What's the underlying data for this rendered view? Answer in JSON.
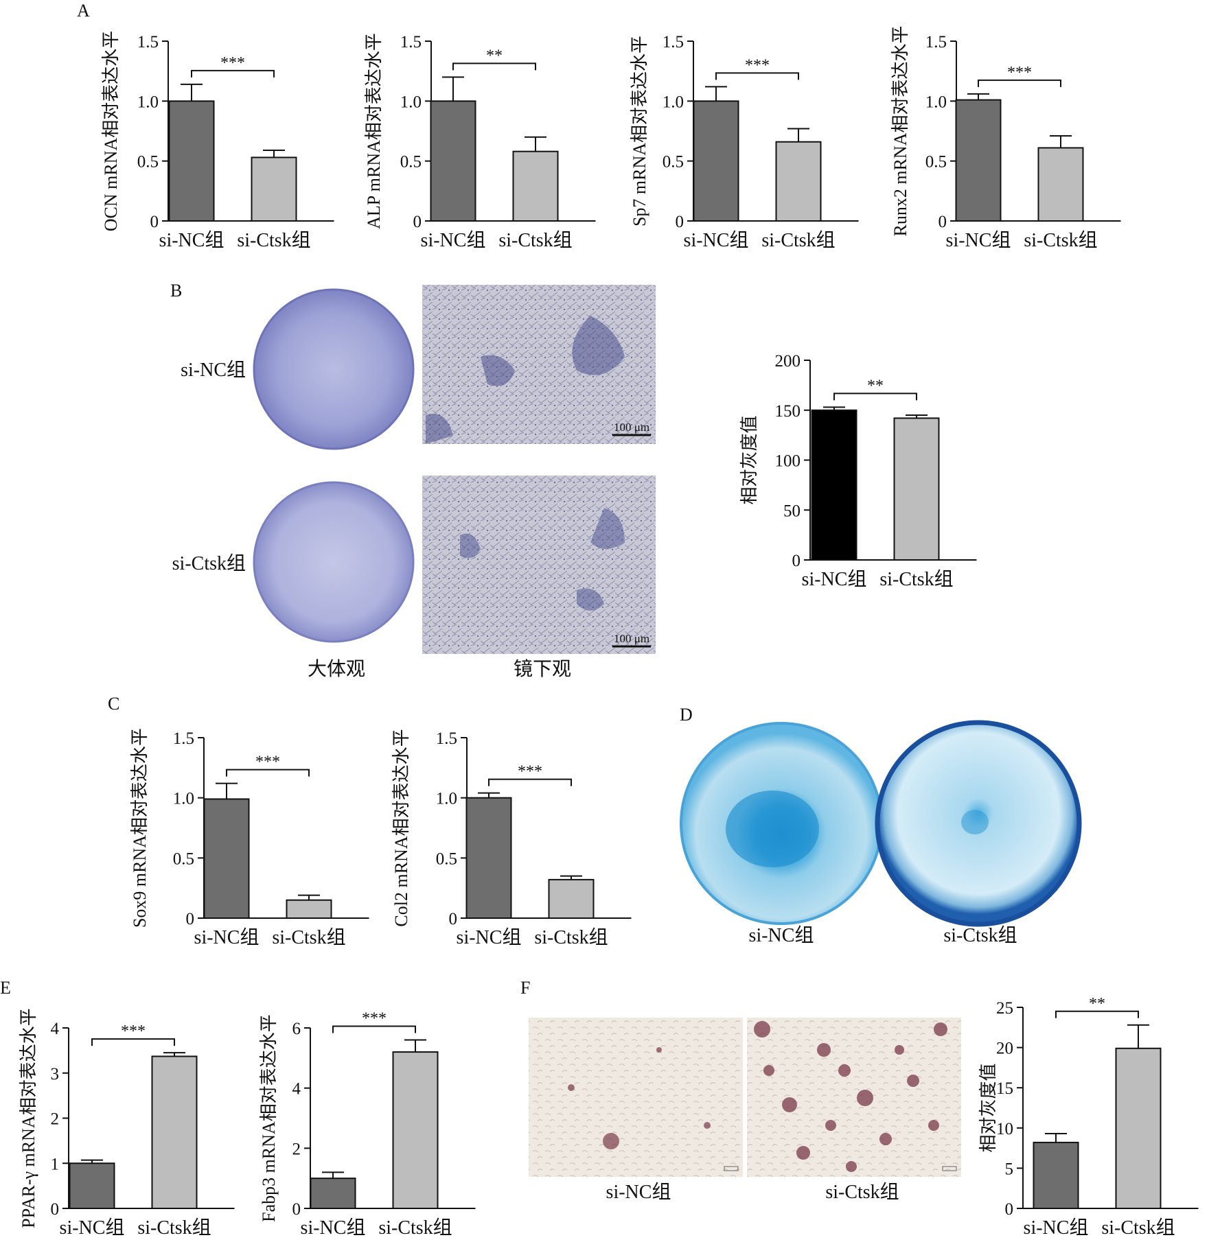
{
  "panels": {
    "A": "A",
    "B": "B",
    "C": "C",
    "D": "D",
    "E": "E",
    "F": "F"
  },
  "groups": [
    "si-NC组",
    "si-Ctsk组"
  ],
  "colors": {
    "dark_bar": "#6e6e6e",
    "light_bar": "#bdbdbd",
    "black_bar": "#000000",
    "alp_stain": "#5a5fa8",
    "alcian_blue": "#3aa6dc",
    "oil_red": "#7a3a4a"
  },
  "panel_b": {
    "row_labels": [
      "si-NC组",
      "si-Ctsk组"
    ],
    "column_captions": [
      "大体观",
      "镜下观"
    ],
    "scale_bar": "100 μm"
  },
  "panel_d": {
    "captions": [
      "si-NC组",
      "si-Ctsk组"
    ]
  },
  "panel_f": {
    "captions": [
      "si-NC组",
      "si-Ctsk组"
    ]
  },
  "chart_data": [
    {
      "id": "A1",
      "type": "bar",
      "panel": "A",
      "categories": [
        "si-NC组",
        "si-Ctsk组"
      ],
      "values": [
        1.0,
        0.53
      ],
      "errors": [
        0.14,
        0.06
      ],
      "ylabel": "OCN mRNA相对表达水平",
      "ylim": [
        0,
        1.5
      ],
      "yticks": [
        0,
        0.5,
        1.0,
        1.5
      ],
      "ytick_labels": [
        "0",
        "0.5",
        "1.0",
        "1.5"
      ],
      "significance": "***",
      "bar_colors": [
        "#6e6e6e",
        "#bdbdbd"
      ]
    },
    {
      "id": "A2",
      "type": "bar",
      "panel": "A",
      "categories": [
        "si-NC组",
        "si-Ctsk组"
      ],
      "values": [
        1.0,
        0.58
      ],
      "errors": [
        0.2,
        0.12
      ],
      "ylabel": "ALP mRNA相对表达水平",
      "ylim": [
        0,
        1.5
      ],
      "yticks": [
        0,
        0.5,
        1.0,
        1.5
      ],
      "ytick_labels": [
        "0",
        "0.5",
        "1.0",
        "1.5"
      ],
      "significance": "**",
      "bar_colors": [
        "#6e6e6e",
        "#bdbdbd"
      ]
    },
    {
      "id": "A3",
      "type": "bar",
      "panel": "A",
      "categories": [
        "si-NC组",
        "si-Ctsk组"
      ],
      "values": [
        1.0,
        0.66
      ],
      "errors": [
        0.12,
        0.11
      ],
      "ylabel": "Sp7 mRNA相对表达水平",
      "ylim": [
        0,
        1.5
      ],
      "yticks": [
        0,
        0.5,
        1.0,
        1.5
      ],
      "ytick_labels": [
        "0",
        "0.5",
        "1.0",
        "1.5"
      ],
      "significance": "***",
      "bar_colors": [
        "#6e6e6e",
        "#bdbdbd"
      ]
    },
    {
      "id": "A4",
      "type": "bar",
      "panel": "A",
      "categories": [
        "si-NC组",
        "si-Ctsk组"
      ],
      "values": [
        1.01,
        0.61
      ],
      "errors": [
        0.05,
        0.1
      ],
      "ylabel": "Runx2 mRNA相对表达水平",
      "ylim": [
        0,
        1.5
      ],
      "yticks": [
        0,
        0.5,
        1.0,
        1.5
      ],
      "ytick_labels": [
        "0",
        "0.5",
        "1.0",
        "1.5"
      ],
      "significance": "***",
      "bar_colors": [
        "#6e6e6e",
        "#bdbdbd"
      ]
    },
    {
      "id": "B1",
      "type": "bar",
      "panel": "B",
      "categories": [
        "si-NC组",
        "si-Ctsk组"
      ],
      "values": [
        150,
        142
      ],
      "errors": [
        3,
        3
      ],
      "ylabel": "相对灰度值",
      "ylim": [
        0,
        200
      ],
      "yticks": [
        0,
        50,
        100,
        150,
        200
      ],
      "ytick_labels": [
        "0",
        "50",
        "100",
        "150",
        "200"
      ],
      "significance": "**",
      "bar_colors": [
        "#000000",
        "#bdbdbd"
      ]
    },
    {
      "id": "C1",
      "type": "bar",
      "panel": "C",
      "categories": [
        "si-NC组",
        "si-Ctsk组"
      ],
      "values": [
        0.99,
        0.15
      ],
      "errors": [
        0.13,
        0.04
      ],
      "ylabel": "Sox9 mRNA相对表达水平",
      "ylim": [
        0,
        1.5
      ],
      "yticks": [
        0,
        0.5,
        1.0,
        1.5
      ],
      "ytick_labels": [
        "0",
        "0.5",
        "1.0",
        "1.5"
      ],
      "significance": "***",
      "bar_colors": [
        "#6e6e6e",
        "#bdbdbd"
      ]
    },
    {
      "id": "C2",
      "type": "bar",
      "panel": "C",
      "categories": [
        "si-NC组",
        "si-Ctsk组"
      ],
      "values": [
        1.0,
        0.32
      ],
      "errors": [
        0.04,
        0.03
      ],
      "ylabel": "Col2 mRNA相对表达水平",
      "ylim": [
        0,
        1.5
      ],
      "yticks": [
        0,
        0.5,
        1.0,
        1.5
      ],
      "ytick_labels": [
        "0",
        "0.5",
        "1.0",
        "1.5"
      ],
      "significance": "***",
      "bar_colors": [
        "#6e6e6e",
        "#bdbdbd"
      ]
    },
    {
      "id": "E1",
      "type": "bar",
      "panel": "E",
      "categories": [
        "si-NC组",
        "si-Ctsk组"
      ],
      "values": [
        1.0,
        3.37
      ],
      "errors": [
        0.07,
        0.08
      ],
      "ylabel": "PPAR-γ mRNA相对表达水平",
      "ylim": [
        0,
        4
      ],
      "yticks": [
        0,
        1,
        2,
        3,
        4
      ],
      "ytick_labels": [
        "0",
        "1",
        "2",
        "3",
        "4"
      ],
      "significance": "***",
      "bar_colors": [
        "#6e6e6e",
        "#bdbdbd"
      ]
    },
    {
      "id": "E2",
      "type": "bar",
      "panel": "E",
      "categories": [
        "si-NC组",
        "si-Ctsk组"
      ],
      "values": [
        1.0,
        5.2
      ],
      "errors": [
        0.2,
        0.4
      ],
      "ylabel": "Fabp3 mRNA相对表达水平",
      "ylim": [
        0,
        6
      ],
      "yticks": [
        0,
        2,
        4,
        6
      ],
      "ytick_labels": [
        "0",
        "2",
        "4",
        "6"
      ],
      "significance": "***",
      "bar_colors": [
        "#6e6e6e",
        "#bdbdbd"
      ]
    },
    {
      "id": "F1",
      "type": "bar",
      "panel": "F",
      "categories": [
        "si-NC组",
        "si-Ctsk组"
      ],
      "values": [
        8.2,
        19.9
      ],
      "errors": [
        1.1,
        2.9
      ],
      "ylabel": "相对灰度值",
      "ylim": [
        0,
        25
      ],
      "yticks": [
        0,
        5,
        10,
        15,
        20,
        25
      ],
      "ytick_labels": [
        "0",
        "5",
        "10",
        "15",
        "20",
        "25"
      ],
      "significance": "**",
      "bar_colors": [
        "#6e6e6e",
        "#bdbdbd"
      ]
    }
  ]
}
